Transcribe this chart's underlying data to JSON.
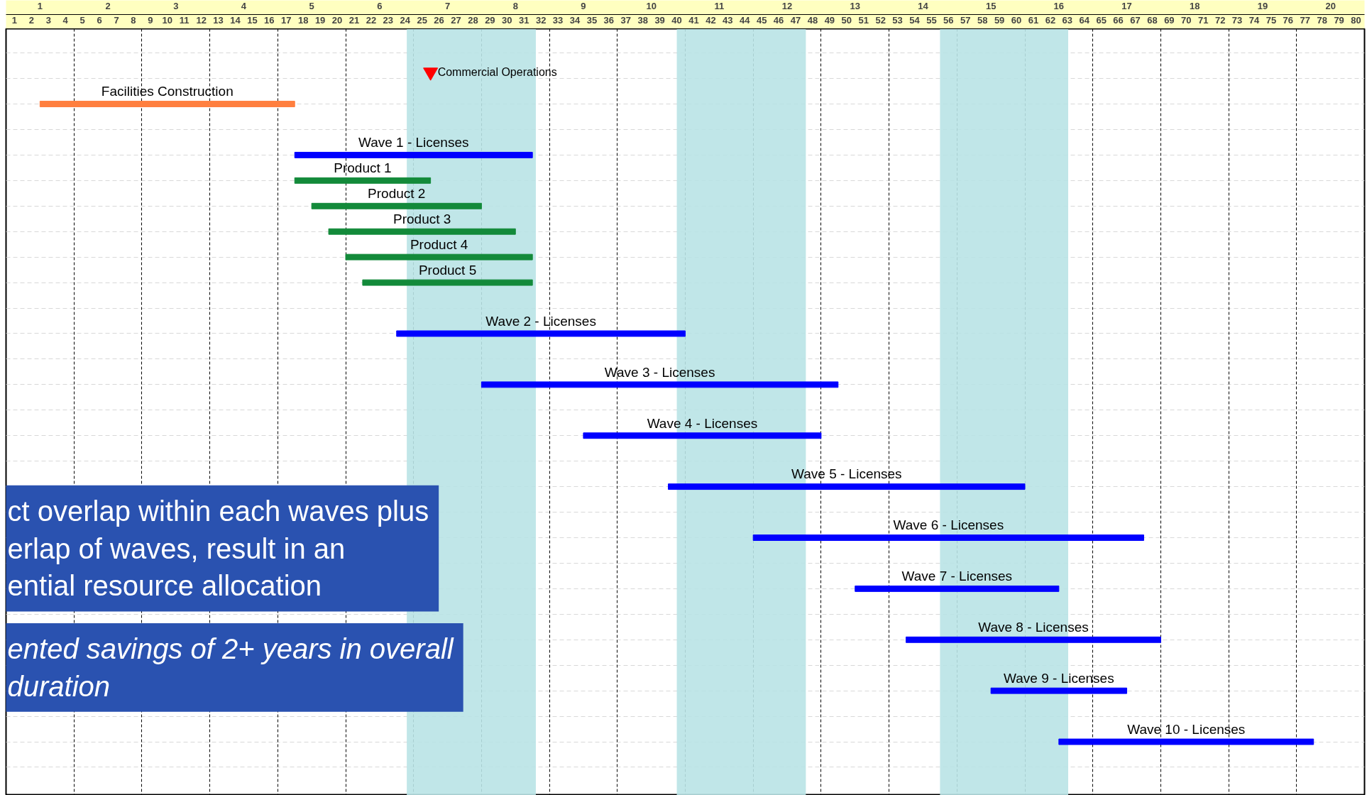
{
  "chart_data": {
    "type": "bar",
    "orientation": "horizontal",
    "categories": [
      null,
      null,
      "Facilities Construction",
      null,
      "Wave 1 - Licenses",
      "Product 1",
      "Product 2",
      "Product 3",
      "Product 4",
      "Product 5",
      null,
      "Wave 2 - Licenses",
      null,
      "Wave 3 - Licenses",
      null,
      "Wave 4 - Licenses",
      null,
      "Wave 5 - Licenses",
      null,
      "Wave 6 - Licenses",
      null,
      "Wave 7 - Licenses",
      null,
      "Wave 8 - Licenses",
      null,
      "Wave 9 - Licenses",
      null,
      "Wave 10 - Licenses",
      null
    ],
    "series": [
      {
        "base": [
          null,
          null,
          2.5,
          null,
          17.5,
          17.5,
          18.5,
          19.5,
          20.5,
          21.5,
          null,
          23.5,
          null,
          28.5,
          null,
          34.5,
          null,
          39.5,
          null,
          44.5,
          null,
          50.5,
          null,
          53.5,
          null,
          58.5,
          null,
          62.5,
          null
        ],
        "values": [
          null,
          null,
          15,
          null,
          14,
          8,
          10,
          11,
          11,
          10,
          null,
          17,
          null,
          21,
          null,
          14,
          null,
          21,
          null,
          23,
          null,
          12,
          null,
          15,
          null,
          8,
          null,
          15,
          null
        ],
        "colors": [
          null,
          null,
          "#ff7f3f",
          null,
          "#0000ff",
          "#138a3a",
          "#138a3a",
          "#138a3a",
          "#138a3a",
          "#138a3a",
          null,
          "#0000ff",
          null,
          "#0000ff",
          null,
          "#0000ff",
          null,
          "#0000ff",
          null,
          "#0000ff",
          null,
          "#0000ff",
          null,
          "#0000ff",
          null,
          "#0000ff",
          null,
          "#0000ff",
          null
        ]
      },
      {
        "type": "scatter",
        "name": "Commercial Operations",
        "color": "#ff0000",
        "marker": "triangle",
        "values": [
          null,
          25.5,
          null,
          null,
          null,
          null,
          null,
          null,
          null,
          null,
          null,
          null,
          null,
          null,
          null,
          null,
          null,
          null,
          null,
          null,
          null,
          null,
          null,
          null,
          null,
          null,
          null,
          null,
          null
        ]
      }
    ],
    "xlim": [
      0.5,
      80.5
    ],
    "x2lim": [
      0.5,
      20.5
    ],
    "xticks": [
      1,
      2,
      3,
      4,
      5,
      6,
      7,
      8,
      9,
      10,
      11,
      12,
      13,
      14,
      15,
      16,
      17,
      18,
      19,
      20,
      21,
      22,
      23,
      24,
      25,
      26,
      27,
      28,
      29,
      30,
      31,
      32,
      33,
      34,
      35,
      36,
      37,
      38,
      39,
      40,
      41,
      42,
      43,
      44,
      45,
      46,
      47,
      48,
      49,
      50,
      51,
      52,
      53,
      54,
      55,
      56,
      57,
      58,
      59,
      60,
      61,
      62,
      63,
      64,
      65,
      66,
      67,
      68,
      69,
      70,
      71,
      72,
      73,
      74,
      75,
      76,
      77,
      78,
      79,
      80
    ],
    "x2ticks": [
      {
        "value": 0.5,
        "label": null
      },
      1,
      {
        "value": 1.5,
        "label": null
      },
      2,
      {
        "value": 2.5,
        "label": null
      },
      3,
      {
        "value": 3.5,
        "label": null
      },
      4,
      {
        "value": 4.5,
        "label": null
      },
      5,
      {
        "value": 5.5,
        "label": null
      },
      6,
      {
        "value": 6.5,
        "label": null
      },
      7,
      {
        "value": 7.5,
        "label": null
      },
      8,
      {
        "value": 8.5,
        "label": null
      },
      9,
      {
        "value": 9.5,
        "label": null
      },
      10,
      {
        "value": 10.5,
        "label": null
      },
      11,
      {
        "value": 11.5,
        "label": null
      },
      12,
      {
        "value": 12.5,
        "label": null
      },
      13,
      {
        "value": 13.5,
        "label": null
      },
      14,
      {
        "value": 14.5,
        "label": null
      },
      15,
      {
        "value": 15.5,
        "label": null
      },
      16,
      {
        "value": 16.5,
        "label": null
      },
      17,
      {
        "value": 17.5,
        "label": null
      },
      18,
      {
        "value": 18.5,
        "label": null
      },
      19,
      {
        "value": 19.5,
        "label": null
      },
      20,
      {
        "value": 20.5,
        "label": null
      }
    ],
    "bands": [
      {
        "axis": "x",
        "from": 24.1,
        "to": 31.7,
        "color": "#b9e3e5"
      },
      {
        "axis": "x",
        "from": 40,
        "to": 47.6,
        "color": "#b9e3e5"
      },
      {
        "axis": "x",
        "from": 55.5,
        "to": 63.05,
        "color": "#b9e3e5"
      }
    ],
    "annotations": [
      "ct overlap within each waves plus\nerlap of waves, result in an\nential resource allocation",
      "ented savings of 2+ years in overall\n duration"
    ],
    "grid": true,
    "tick_labels": "x"
  }
}
